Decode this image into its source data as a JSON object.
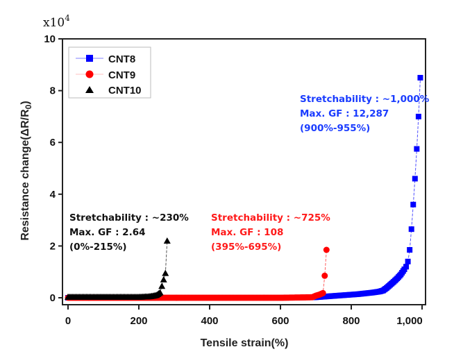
{
  "chart_data": {
    "type": "scatter",
    "title": "",
    "xlabel": "Tensile strain(%)",
    "ylabel": "Resistance change(ΔR/R0)",
    "ylabel_parts": {
      "main": "Resistance change(ΔR/R",
      "sub": "0",
      "close": ")"
    },
    "y_multiplier": {
      "base": "x10",
      "exp": "4"
    },
    "xlim": [
      -10,
      1010
    ],
    "ylim": [
      0,
      10
    ],
    "x_ticks": [
      0,
      200,
      400,
      600,
      800,
      1000
    ],
    "x_tick_labels": [
      "0",
      "200",
      "400",
      "600",
      "800",
      "1,000"
    ],
    "y_ticks": [
      0,
      2,
      4,
      6,
      8,
      10
    ],
    "y_tick_labels": [
      "0",
      "2",
      "4",
      "6",
      "8",
      "10"
    ],
    "grid": false,
    "legend_position": "top-left",
    "series": [
      {
        "name": "CNT8",
        "color": "#0000ff",
        "marker": "square",
        "x": [
          0,
          100,
          200,
          300,
          400,
          500,
          600,
          650,
          700,
          720,
          740,
          760,
          780,
          800,
          820,
          840,
          860,
          880,
          890,
          900,
          910,
          920,
          930,
          940,
          950,
          955,
          960,
          965,
          970,
          975,
          980,
          985,
          990,
          995
        ],
        "y": [
          0.0,
          0.0,
          0.0,
          0.0,
          0.0,
          0.0,
          0.0,
          0.01,
          0.02,
          0.04,
          0.06,
          0.08,
          0.1,
          0.12,
          0.14,
          0.17,
          0.2,
          0.24,
          0.28,
          0.38,
          0.5,
          0.62,
          0.75,
          0.9,
          1.1,
          1.2,
          1.4,
          1.85,
          2.65,
          3.6,
          4.6,
          5.75,
          7.0,
          8.5
        ]
      },
      {
        "name": "CNT9",
        "color": "#ff0000",
        "marker": "circle",
        "x": [
          0,
          100,
          200,
          300,
          400,
          500,
          600,
          650,
          690,
          700,
          710,
          720,
          725,
          730
        ],
        "y": [
          0.0,
          0.0,
          0.0,
          0.0,
          0.0,
          0.0,
          0.0,
          0.01,
          0.02,
          0.08,
          0.12,
          0.18,
          0.85,
          1.85
        ]
      },
      {
        "name": "CNT10",
        "color": "#000000",
        "marker": "triangle",
        "x": [
          0,
          20,
          40,
          60,
          80,
          100,
          120,
          140,
          160,
          180,
          200,
          215,
          230,
          240,
          250,
          260,
          265,
          270,
          275,
          280
        ],
        "y": [
          0.03,
          0.03,
          0.03,
          0.03,
          0.03,
          0.03,
          0.03,
          0.03,
          0.03,
          0.03,
          0.03,
          0.04,
          0.05,
          0.07,
          0.1,
          0.2,
          0.45,
          0.7,
          0.95,
          2.2
        ]
      }
    ],
    "annotations": [
      {
        "series": "CNT8",
        "color": "#1a3cff",
        "lines": [
          "Stretchability : ~1,000%",
          "Max. GF : 12,287",
          "(900%-955%)"
        ]
      },
      {
        "series": "CNT9",
        "color": "#ff1a1a",
        "lines": [
          "Stretchability : ~725%",
          "Max. GF : 108",
          "(395%-695%)"
        ]
      },
      {
        "series": "CNT10",
        "color": "#111111",
        "lines": [
          "Stretchability : ~230%",
          "Max. GF : 2.64",
          "(0%-215%)"
        ]
      }
    ]
  }
}
